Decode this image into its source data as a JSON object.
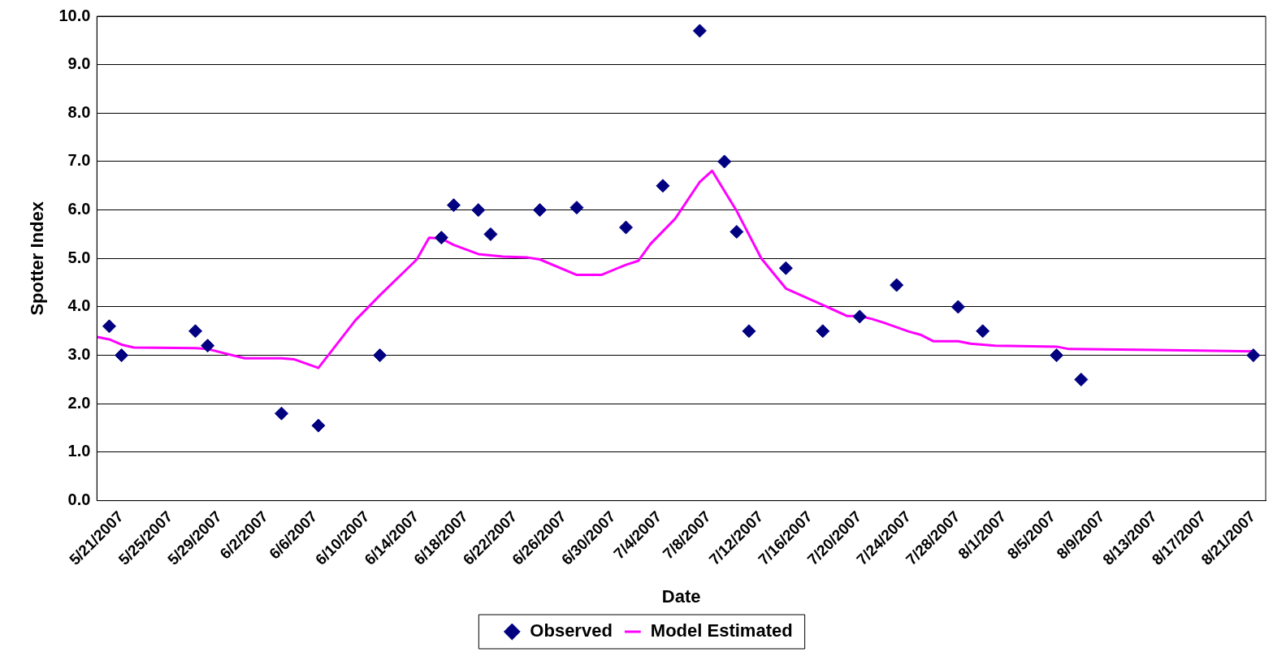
{
  "chart_data": {
    "type": "scatter",
    "xlabel": "Date",
    "ylabel": "Spotter Index",
    "xlim": [
      "2007-05-21",
      "2007-08-24"
    ],
    "ylim": [
      0,
      10
    ],
    "xticks": [
      {
        "value": "2007-05-21",
        "label": "5/21/2007"
      },
      {
        "value": "2007-05-25",
        "label": "5/25/2007"
      },
      {
        "value": "2007-05-29",
        "label": "5/29/2007"
      },
      {
        "value": "2007-06-02",
        "label": "6/2/2007"
      },
      {
        "value": "2007-06-06",
        "label": "6/6/2007"
      },
      {
        "value": "2007-06-10",
        "label": "6/10/2007"
      },
      {
        "value": "2007-06-14",
        "label": "6/14/2007"
      },
      {
        "value": "2007-06-18",
        "label": "6/18/2007"
      },
      {
        "value": "2007-06-22",
        "label": "6/22/2007"
      },
      {
        "value": "2007-06-26",
        "label": "6/26/2007"
      },
      {
        "value": "2007-06-30",
        "label": "6/30/2007"
      },
      {
        "value": "2007-07-04",
        "label": "7/4/2007"
      },
      {
        "value": "2007-07-08",
        "label": "7/8/2007"
      },
      {
        "value": "2007-07-12",
        "label": "7/12/2007"
      },
      {
        "value": "2007-07-16",
        "label": "7/16/2007"
      },
      {
        "value": "2007-07-20",
        "label": "7/20/2007"
      },
      {
        "value": "2007-07-24",
        "label": "7/24/2007"
      },
      {
        "value": "2007-07-28",
        "label": "7/28/2007"
      },
      {
        "value": "2007-08-01",
        "label": "8/1/2007"
      },
      {
        "value": "2007-08-05",
        "label": "8/5/2007"
      },
      {
        "value": "2007-08-09",
        "label": "8/9/2007"
      },
      {
        "value": "2007-08-13",
        "label": "8/13/2007"
      },
      {
        "value": "2007-08-17",
        "label": "8/17/2007"
      },
      {
        "value": "2007-08-21",
        "label": "8/21/2007"
      }
    ],
    "yticks": [
      {
        "value": 0,
        "label": "0.0"
      },
      {
        "value": 1,
        "label": "1.0"
      },
      {
        "value": 2,
        "label": "2.0"
      },
      {
        "value": 3,
        "label": "3.0"
      },
      {
        "value": 4,
        "label": "4.0"
      },
      {
        "value": 5,
        "label": "5.0"
      },
      {
        "value": 6,
        "label": "6.0"
      },
      {
        "value": 7,
        "label": "7.0"
      },
      {
        "value": 8,
        "label": "8.0"
      },
      {
        "value": 9,
        "label": "9.0"
      },
      {
        "value": 10,
        "label": "10.0"
      }
    ],
    "grid": "y",
    "legend": "bottom",
    "series": [
      {
        "name": "Observed",
        "type": "scatter",
        "marker": "diamond",
        "color": "#000080",
        "x": [
          "2007-05-22",
          "2007-05-23",
          "2007-05-29",
          "2007-05-30",
          "2007-06-05",
          "2007-06-08",
          "2007-06-13",
          "2007-06-18",
          "2007-06-19",
          "2007-06-21",
          "2007-06-22",
          "2007-06-26",
          "2007-06-29",
          "2007-07-03",
          "2007-07-06",
          "2007-07-09",
          "2007-07-11",
          "2007-07-12",
          "2007-07-13",
          "2007-07-16",
          "2007-07-19",
          "2007-07-22",
          "2007-07-25",
          "2007-07-30",
          "2007-08-01",
          "2007-08-07",
          "2007-08-09",
          "2007-08-23"
        ],
        "values": [
          3.6,
          3.0,
          3.5,
          3.2,
          1.8,
          1.55,
          3.0,
          5.43,
          6.1,
          6.0,
          5.5,
          6.0,
          6.05,
          5.64,
          6.5,
          9.7,
          7.0,
          5.55,
          3.5,
          4.8,
          3.5,
          3.8,
          4.45,
          4.0,
          3.5,
          3.0,
          2.5,
          3.0
        ]
      },
      {
        "name": "Model Estimated",
        "type": "line",
        "marker": "none",
        "line_style": "solid",
        "color": "#ff00ff",
        "x": [
          "2007-05-21",
          "2007-05-22",
          "2007-05-23",
          "2007-05-24",
          "2007-05-29",
          "2007-05-30",
          "2007-06-02",
          "2007-06-05",
          "2007-06-06",
          "2007-06-08",
          "2007-06-11",
          "2007-06-13",
          "2007-06-16",
          "2007-06-17",
          "2007-06-18",
          "2007-06-19",
          "2007-06-21",
          "2007-06-23",
          "2007-06-25",
          "2007-06-26",
          "2007-06-29",
          "2007-07-01",
          "2007-07-03",
          "2007-07-04",
          "2007-07-05",
          "2007-07-07",
          "2007-07-09",
          "2007-07-10",
          "2007-07-12",
          "2007-07-14",
          "2007-07-16",
          "2007-07-19",
          "2007-07-21",
          "2007-07-22",
          "2007-07-23",
          "2007-07-24",
          "2007-07-26",
          "2007-07-27",
          "2007-07-28",
          "2007-07-30",
          "2007-07-31",
          "2007-08-02",
          "2007-08-07",
          "2007-08-08",
          "2007-08-15",
          "2007-08-23"
        ],
        "values": [
          3.38,
          3.33,
          3.22,
          3.16,
          3.15,
          3.13,
          2.94,
          2.94,
          2.92,
          2.74,
          3.72,
          4.24,
          4.98,
          5.43,
          5.41,
          5.28,
          5.09,
          5.04,
          5.02,
          4.98,
          4.66,
          4.66,
          4.87,
          4.95,
          5.3,
          5.82,
          6.58,
          6.81,
          5.98,
          5.0,
          4.38,
          4.04,
          3.81,
          3.81,
          3.75,
          3.67,
          3.49,
          3.42,
          3.29,
          3.29,
          3.24,
          3.2,
          3.18,
          3.13,
          3.11,
          3.08
        ]
      }
    ]
  }
}
